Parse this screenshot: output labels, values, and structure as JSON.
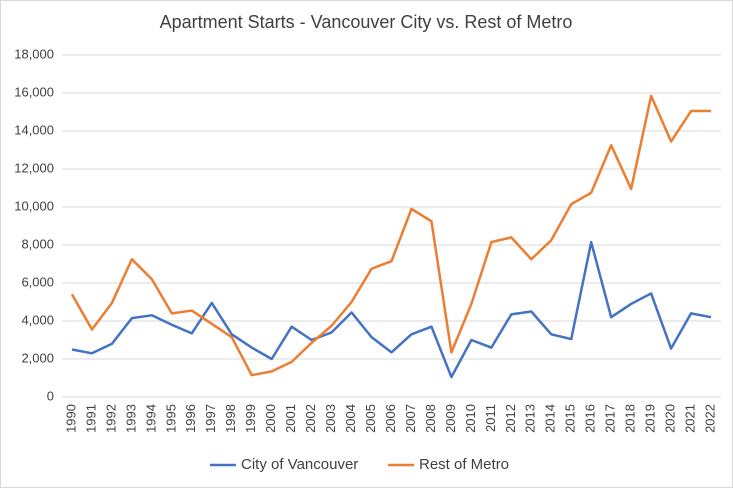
{
  "chart_data": {
    "type": "line",
    "title": "Apartment Starts - Vancouver City vs. Rest of Metro",
    "categories": [
      "1990",
      "1991",
      "1992",
      "1993",
      "1994",
      "1995",
      "1996",
      "1997",
      "1998",
      "1999",
      "2000",
      "2001",
      "2002",
      "2003",
      "2004",
      "2005",
      "2006",
      "2007",
      "2008",
      "2009",
      "2010",
      "2011",
      "2012",
      "2013",
      "2014",
      "2015",
      "2016",
      "2017",
      "2018",
      "2019",
      "2020",
      "2021",
      "2022"
    ],
    "series": [
      {
        "name": "City of Vancouver",
        "color": "#4472c4",
        "values": [
          2500,
          2300,
          2800,
          4150,
          4300,
          3800,
          3350,
          4950,
          3300,
          2600,
          2000,
          3700,
          3000,
          3400,
          4450,
          3150,
          2350,
          3300,
          3700,
          1050,
          3000,
          2600,
          4350,
          4500,
          3300,
          3050,
          8150,
          4200,
          4900,
          5450,
          2550,
          4400,
          4200
        ]
      },
      {
        "name": "Rest of Metro",
        "color": "#ed7d31",
        "values": [
          5400,
          3550,
          4950,
          7250,
          6200,
          4400,
          4550,
          3850,
          3150,
          1150,
          1350,
          1850,
          2850,
          3750,
          5000,
          6750,
          7150,
          9900,
          9250,
          2350,
          4900,
          8150,
          8400,
          7250,
          8250,
          10150,
          10750,
          13250,
          10950,
          15850,
          13450,
          15050,
          15050
        ]
      }
    ],
    "ylim": [
      0,
      18000
    ],
    "yticks": [
      0,
      {
        "value": 2000,
        "label": "2,000"
      },
      {
        "value": 4000,
        "label": "4,000"
      },
      {
        "value": 6000,
        "label": "6,000"
      },
      {
        "value": 8000,
        "label": "8,000"
      },
      {
        "value": 10000,
        "label": "10,000"
      },
      {
        "value": 12000,
        "label": "12,000"
      },
      {
        "value": 14000,
        "label": "14,000"
      },
      {
        "value": 16000,
        "label": "16,000"
      },
      {
        "value": 18000,
        "label": "18,000"
      }
    ],
    "grid": true,
    "legend": "bottom"
  }
}
